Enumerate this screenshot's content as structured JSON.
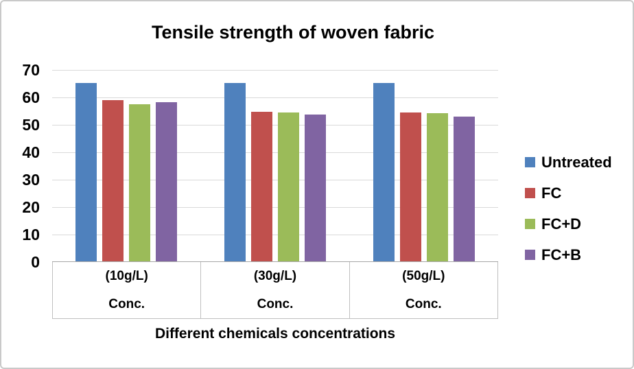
{
  "chart_data": {
    "type": "bar",
    "title": "Tensile strength of woven fabric",
    "xlabel": "Different chemicals concentrations",
    "ylabel": "",
    "ylim": [
      0,
      70
    ],
    "yticks": [
      0,
      10,
      20,
      30,
      40,
      50,
      60,
      70
    ],
    "grid": true,
    "legend_position": "right",
    "categories": [
      {
        "line1": "(10g/L)",
        "line2": "Conc."
      },
      {
        "line1": "(30g/L)",
        "line2": "Conc."
      },
      {
        "line1": "(50g/L)",
        "line2": "Conc."
      }
    ],
    "series": [
      {
        "name": "Untreated",
        "color": "#4F81BD",
        "values": [
          65,
          65,
          65
        ]
      },
      {
        "name": "FC",
        "color": "#C0504D",
        "values": [
          58.7,
          54.5,
          54.3
        ]
      },
      {
        "name": "FC+D",
        "color": "#9BBB59",
        "values": [
          57.2,
          54.2,
          54.1
        ]
      },
      {
        "name": "FC+B",
        "color": "#8064A2",
        "values": [
          58.1,
          53.5,
          52.7
        ]
      }
    ],
    "colors": {
      "gridline": "#D9D9D9",
      "axis_line": "#A6A6A6",
      "band_border": "#BFBFBF",
      "text": "#000000"
    }
  }
}
